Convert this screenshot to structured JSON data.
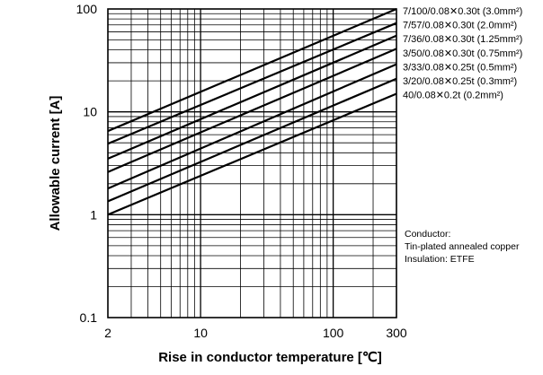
{
  "chart_data": {
    "type": "line",
    "xlabel": "Rise in conductor temperature [℃]",
    "ylabel": "Allowable current [A]",
    "xscale": "log",
    "yscale": "log",
    "xlim": [
      2,
      300
    ],
    "ylim": [
      0.1,
      100
    ],
    "x_ticks": [
      "2",
      "10",
      "100",
      "300"
    ],
    "y_ticks": [
      "100",
      "10",
      "1",
      "0.1"
    ],
    "grid": true,
    "legend": "right (labels at line ends)",
    "series": [
      {
        "name": "7/100/0.08✕0.30t (3.0mm²)",
        "x": [
          2,
          300
        ],
        "y": [
          6.5,
          100
        ]
      },
      {
        "name": "7/57/0.08✕0.30t (2.0mm²)",
        "x": [
          2,
          300
        ],
        "y": [
          4.9,
          73
        ]
      },
      {
        "name": "7/36/0.08✕0.30t (1.25mm²)",
        "x": [
          2,
          300
        ],
        "y": [
          3.5,
          55
        ]
      },
      {
        "name": "3/50/0.08✕0.30t (0.75mm²)",
        "x": [
          2,
          300
        ],
        "y": [
          2.6,
          41
        ]
      },
      {
        "name": "3/33/0.08✕0.25t (0.5mm²)",
        "x": [
          2,
          300
        ],
        "y": [
          1.8,
          29
        ]
      },
      {
        "name": "3/20/0.08✕0.25t (0.3mm²)",
        "x": [
          2,
          300
        ],
        "y": [
          1.35,
          21
        ]
      },
      {
        "name": "40/0.08✕0.2t (0.2mm²)",
        "x": [
          2,
          300
        ],
        "y": [
          1.0,
          15
        ]
      }
    ],
    "annotations": [
      "Conductor:",
      "Tin-plated annealed copper",
      "Insulation: ETFE"
    ]
  }
}
